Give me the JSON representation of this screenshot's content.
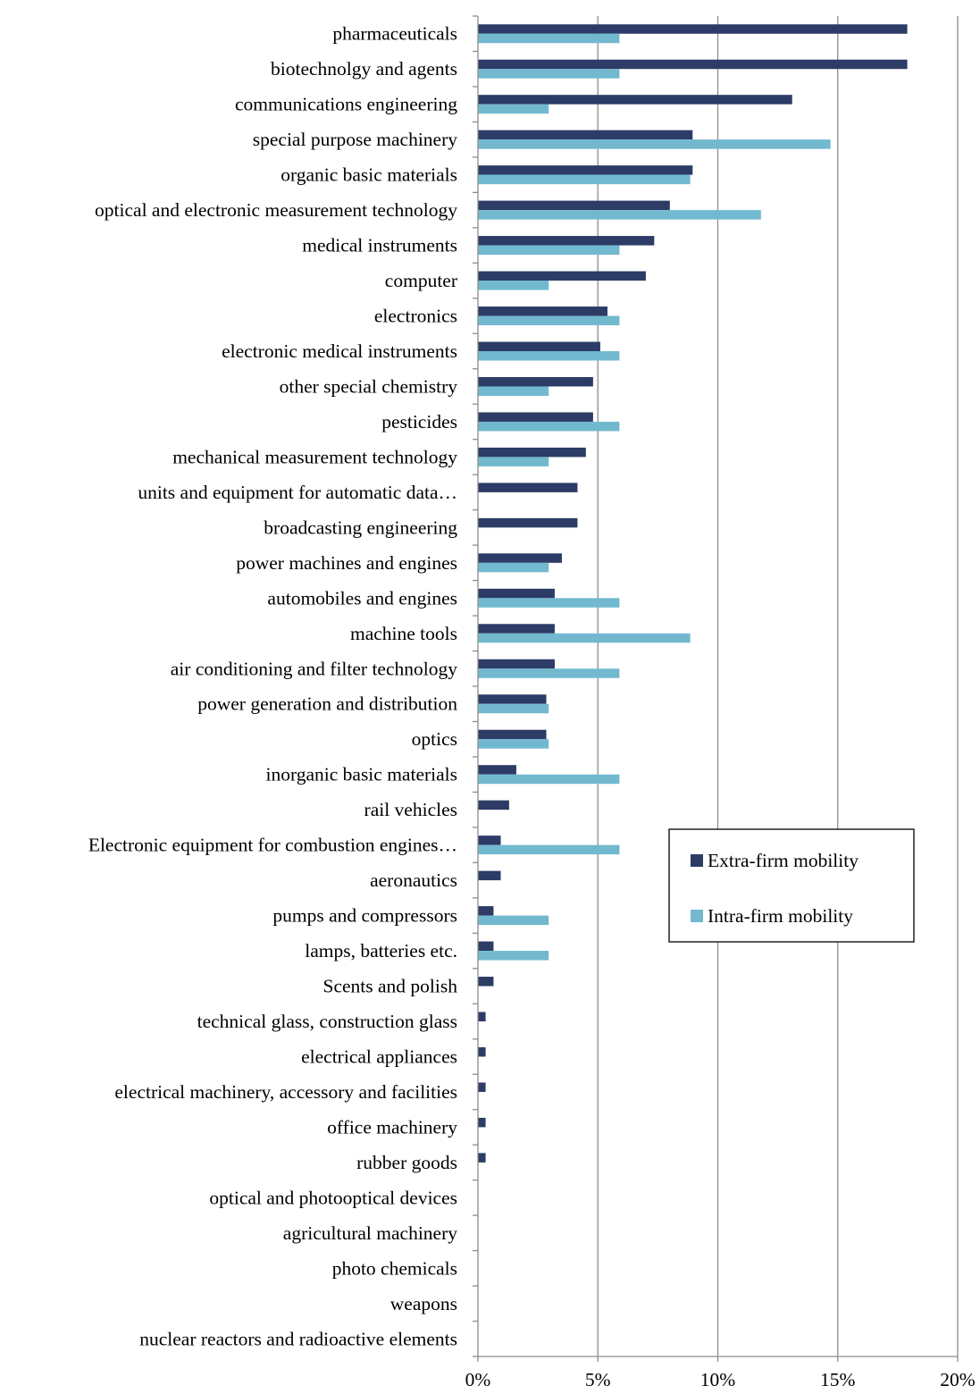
{
  "chart_data": {
    "type": "bar",
    "orientation": "horizontal",
    "title": "",
    "xlabel": "",
    "ylabel": "",
    "xlim": [
      0,
      20
    ],
    "x_ticks": [
      "0%",
      "5%",
      "10%",
      "15%",
      "20%"
    ],
    "grid": "vertical",
    "legend_position": "right",
    "categories": [
      "pharmaceuticals",
      "biotechnolgy and agents",
      "communications engineering",
      "special purpose machinery",
      "organic basic materials",
      "optical and electronic measurement technology",
      "medical instruments",
      "computer",
      "electronics",
      "electronic medical instruments",
      "other special chemistry",
      "pesticides",
      "mechanical measurement technology",
      "units and equipment for automatic data…",
      "broadcasting engineering",
      "power machines and engines",
      "automobiles and engines",
      "machine tools",
      "air conditioning and filter technology",
      "power generation and distribution",
      "optics",
      "inorganic basic materials",
      "rail vehicles",
      "Electronic equipment for combustion engines…",
      "aeronautics",
      "pumps and compressors",
      "lamps, batteries etc.",
      "Scents and polish",
      "technical glass, construction glass",
      "electrical appliances",
      "electrical machinery, accessory and facilities",
      "office machinery",
      "rubber goods",
      "optical and photooptical devices",
      "agricultural machinery",
      "photo chemicals",
      "weapons",
      "nuclear reactors and radioactive elements"
    ],
    "series": [
      {
        "name": "Extra-firm mobility",
        "color": "#2c3c66",
        "values": [
          17.9,
          17.9,
          13.1,
          8.95,
          8.95,
          8.0,
          7.35,
          7.0,
          5.4,
          5.1,
          4.8,
          4.8,
          4.5,
          4.15,
          4.15,
          3.5,
          3.2,
          3.2,
          3.2,
          2.85,
          2.85,
          1.6,
          1.3,
          0.95,
          0.95,
          0.65,
          0.65,
          0.65,
          0.32,
          0.32,
          0.32,
          0.32,
          0.32,
          0,
          0,
          0,
          0,
          0
        ]
      },
      {
        "name": "Intra-firm mobility",
        "color": "#72b9cf",
        "values": [
          5.9,
          5.9,
          2.95,
          14.7,
          8.85,
          11.8,
          5.9,
          2.95,
          5.9,
          5.9,
          2.95,
          5.9,
          2.95,
          0,
          0,
          2.95,
          5.9,
          8.85,
          5.9,
          2.95,
          2.95,
          5.9,
          0,
          5.9,
          0,
          2.95,
          2.95,
          0,
          0,
          0,
          0,
          0,
          0,
          0,
          0,
          0,
          0,
          0
        ]
      }
    ]
  }
}
